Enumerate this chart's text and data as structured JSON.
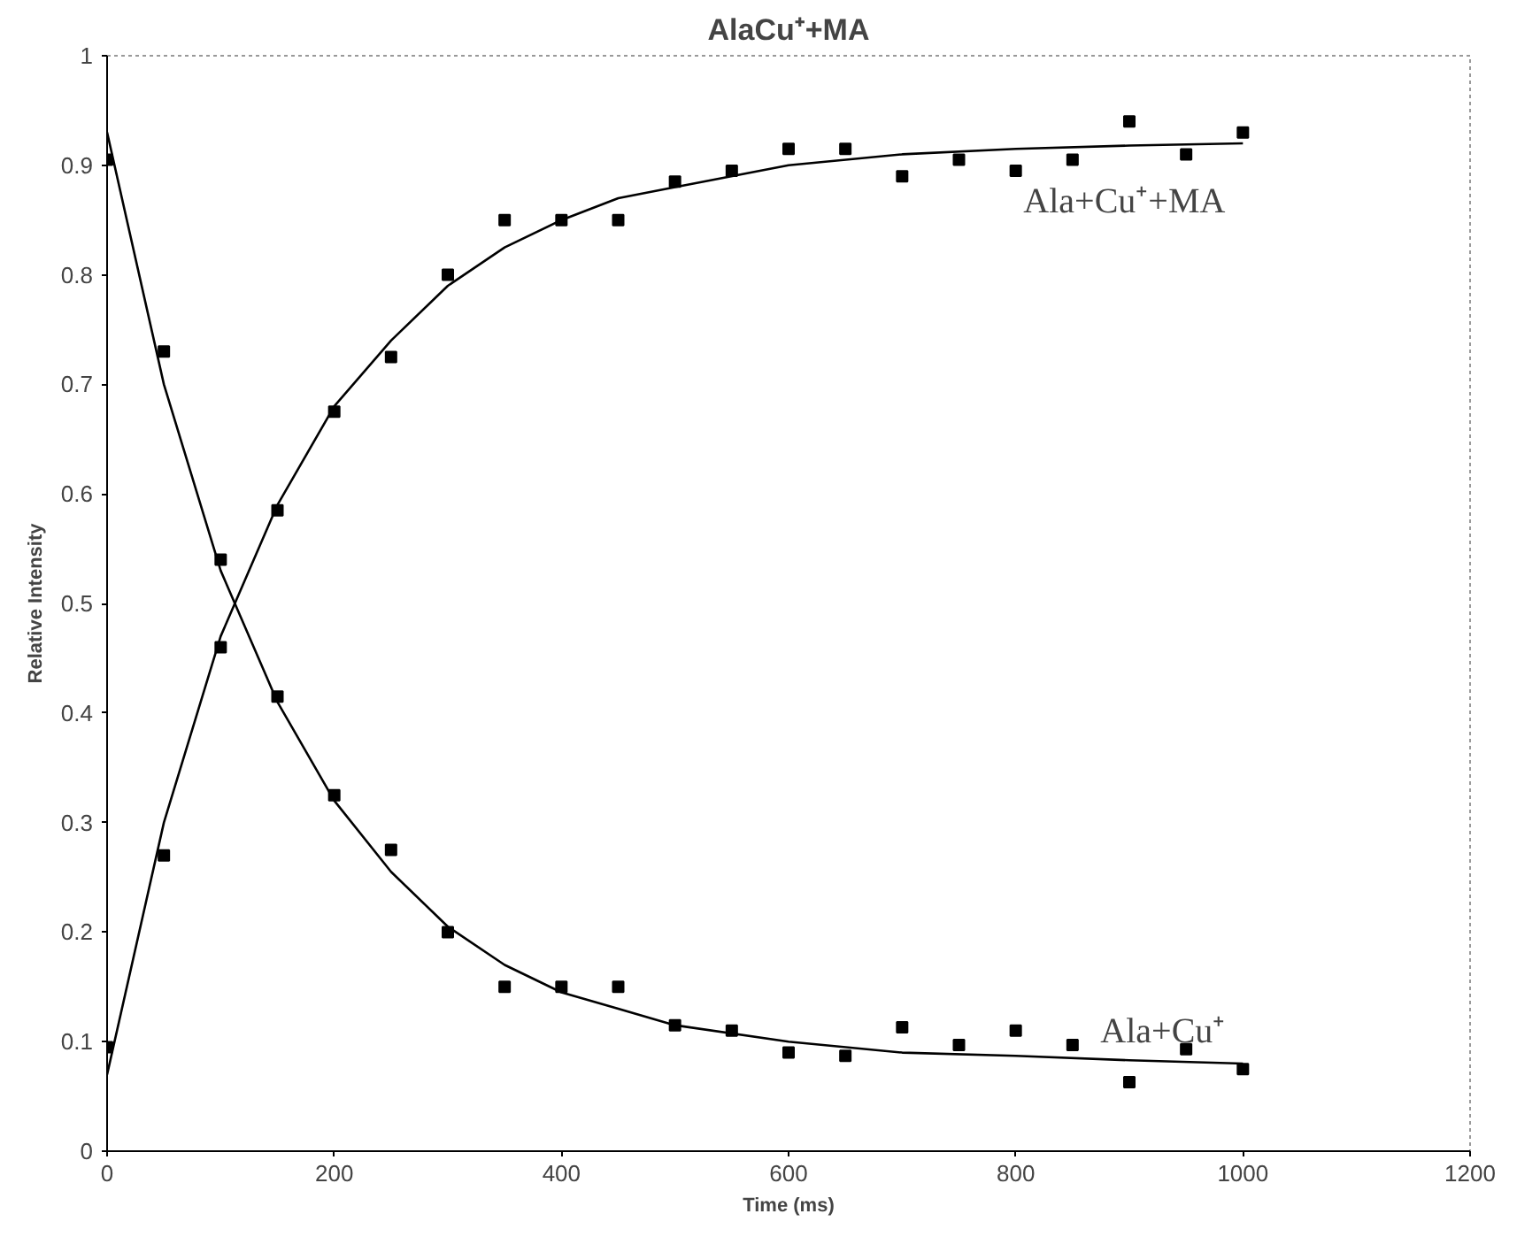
{
  "chart_data": {
    "type": "scatter",
    "title": "AlaCu⁺+MA",
    "xlabel": "Time (ms)",
    "ylabel": "Relative Intensity",
    "xlim": [
      0,
      1200
    ],
    "ylim": [
      0,
      1
    ],
    "xticks": [
      0,
      200,
      400,
      600,
      800,
      1000,
      1200
    ],
    "yticks": [
      0,
      0.1,
      0.2,
      0.3,
      0.4,
      0.5,
      0.6,
      0.7,
      0.8,
      0.9,
      1
    ],
    "grid": false,
    "marker": "square",
    "series": [
      {
        "name": "Ala+Cu⁺+MA",
        "color": "#000000",
        "x": [
          0,
          50,
          100,
          150,
          200,
          250,
          300,
          350,
          400,
          450,
          500,
          550,
          600,
          650,
          700,
          750,
          800,
          850,
          900,
          950,
          1000
        ],
        "values": [
          0.095,
          0.27,
          0.46,
          0.585,
          0.675,
          0.725,
          0.8,
          0.85,
          0.85,
          0.85,
          0.885,
          0.895,
          0.915,
          0.915,
          0.89,
          0.905,
          0.895,
          0.905,
          0.94,
          0.91,
          0.93
        ]
      },
      {
        "name": "Ala+Cu⁺",
        "color": "#000000",
        "x": [
          0,
          50,
          100,
          150,
          200,
          250,
          300,
          350,
          400,
          450,
          500,
          550,
          600,
          650,
          700,
          750,
          800,
          850,
          900,
          950,
          1000
        ],
        "values": [
          0.905,
          0.73,
          0.54,
          0.415,
          0.325,
          0.275,
          0.2,
          0.15,
          0.15,
          0.15,
          0.115,
          0.11,
          0.09,
          0.087,
          0.113,
          0.097,
          0.11,
          0.097,
          0.063,
          0.093,
          0.075
        ]
      },
      {
        "type": "line",
        "color": "#000000",
        "marker": "none",
        "line_style": "solid",
        "x": [
          0,
          50,
          100,
          150,
          200,
          250,
          300,
          350,
          400,
          450,
          500,
          600,
          700,
          800,
          900,
          1000
        ],
        "values": [
          0.07,
          0.3,
          0.47,
          0.59,
          0.68,
          0.74,
          0.79,
          0.825,
          0.85,
          0.87,
          0.88,
          0.9,
          0.91,
          0.915,
          0.918,
          0.92
        ]
      },
      {
        "type": "line",
        "color": "#000000",
        "marker": "none",
        "line_style": "solid",
        "x": [
          0,
          50,
          100,
          150,
          200,
          250,
          300,
          350,
          400,
          450,
          500,
          600,
          700,
          800,
          900,
          1000
        ],
        "values": [
          0.93,
          0.7,
          0.53,
          0.41,
          0.32,
          0.255,
          0.205,
          0.17,
          0.145,
          0.13,
          0.115,
          0.1,
          0.09,
          0.087,
          0.083,
          0.08
        ]
      }
    ]
  }
}
